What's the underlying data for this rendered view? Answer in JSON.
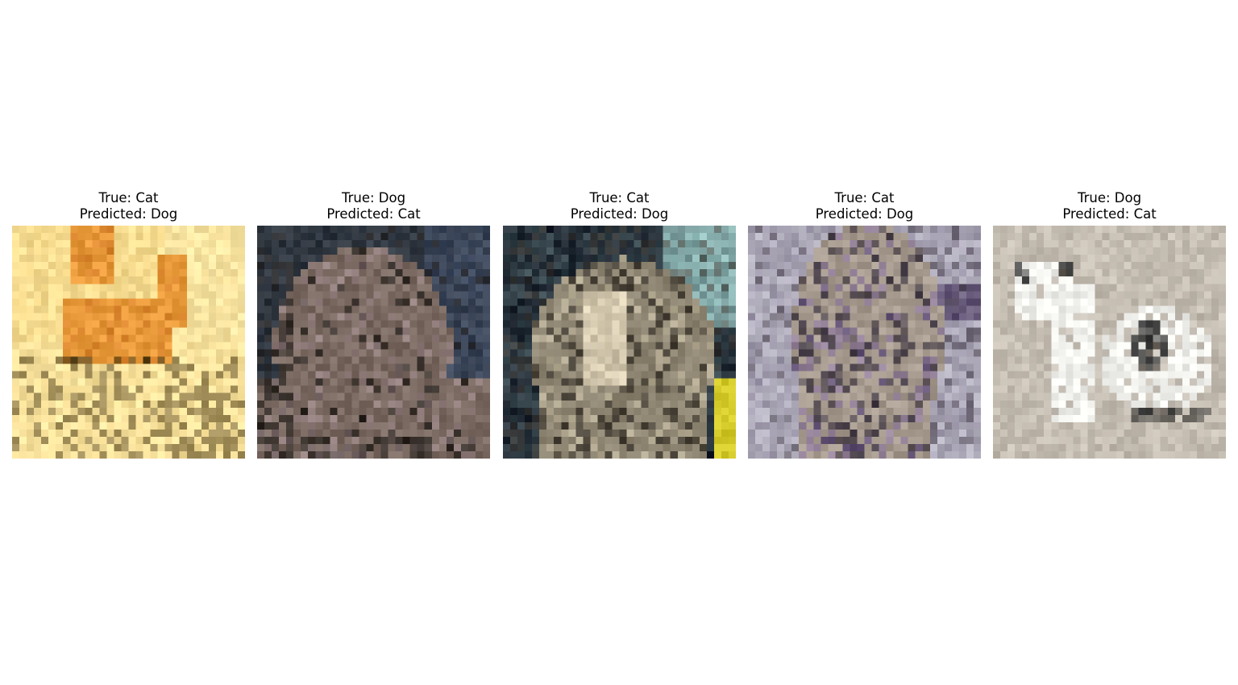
{
  "panels": [
    {
      "true_label": "True: Cat",
      "predicted_label": "Predicted: Dog",
      "image": "orange-cat-stretching",
      "palette": {
        "bg": "#f6d98a",
        "bg2": "#fbe8a8",
        "main": "#e89a3a",
        "dark": "#4a3a16",
        "accent": "#c86a1e"
      }
    },
    {
      "true_label": "True: Dog",
      "predicted_label": "Predicted: Cat",
      "image": "tabby-cat-closeup",
      "palette": {
        "bg": "#2c3238",
        "bg2": "#3e4a60",
        "main": "#7a6a62",
        "dark": "#2a2420",
        "accent": "#b49aa2"
      }
    },
    {
      "true_label": "True: Cat",
      "predicted_label": "Predicted: Dog",
      "image": "tortoiseshell-cat-face",
      "palette": {
        "bg": "#1e2630",
        "bg2": "#8fb8b6",
        "main": "#8e8672",
        "dark": "#3e3830",
        "accent": "#e8dcc0"
      }
    },
    {
      "true_label": "True: Cat",
      "predicted_label": "Predicted: Dog",
      "image": "grey-cat-sitting",
      "palette": {
        "bg": "#bebcc8",
        "bg2": "#584a6c",
        "main": "#a69a8e",
        "dark": "#3c3440",
        "accent": "#7a5eaa"
      }
    },
    {
      "true_label": "True: Dog",
      "predicted_label": "Predicted: Cat",
      "image": "white-dog-black-spot",
      "palette": {
        "bg": "#b6ada0",
        "bg2": "#d2ccc2",
        "main": "#f0f0ec",
        "dark": "#1e1e1e",
        "accent": "#8a7a6a"
      }
    }
  ]
}
